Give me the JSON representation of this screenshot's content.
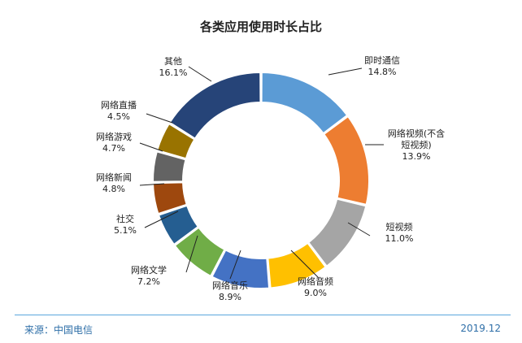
{
  "chart_data": {
    "type": "pie",
    "variant": "donut",
    "title": "各类应用使用时长占比",
    "unit": "%",
    "slices": [
      {
        "name": "即时通信",
        "value": 14.8,
        "label_lines": [
          "即时通信"
        ],
        "value_label": "14.8%",
        "color": "#5b9bd5"
      },
      {
        "name": "网络视频(不含短视频)",
        "value": 13.9,
        "label_lines": [
          "网络视频(不含",
          "短视频)"
        ],
        "value_label": "13.9%",
        "color": "#ed7d31"
      },
      {
        "name": "短视频",
        "value": 11.0,
        "label_lines": [
          "短视频"
        ],
        "value_label": "11.0%",
        "color": "#a5a5a5"
      },
      {
        "name": "网络音频",
        "value": 9.0,
        "label_lines": [
          "网络音频"
        ],
        "value_label": "9.0%",
        "color": "#ffc000"
      },
      {
        "name": "网络音乐",
        "value": 8.9,
        "label_lines": [
          "网络音乐"
        ],
        "value_label": "8.9%",
        "color": "#4472c4"
      },
      {
        "name": "网络文学",
        "value": 7.2,
        "label_lines": [
          "网络文学"
        ],
        "value_label": "7.2%",
        "color": "#70ad47"
      },
      {
        "name": "社交",
        "value": 5.1,
        "label_lines": [
          "社交"
        ],
        "value_label": "5.1%",
        "color": "#255e91"
      },
      {
        "name": "网络新闻",
        "value": 4.8,
        "label_lines": [
          "网络新闻"
        ],
        "value_label": "4.8%",
        "color": "#9e480e"
      },
      {
        "name": "网络游戏",
        "value": 4.7,
        "label_lines": [
          "网络游戏"
        ],
        "value_label": "4.7%",
        "color": "#636363"
      },
      {
        "name": "网络直播",
        "value": 4.5,
        "label_lines": [
          "网络直播"
        ],
        "value_label": "4.5%",
        "color": "#997300"
      },
      {
        "name": "其他",
        "value": 16.1,
        "label_lines": [
          "其他"
        ],
        "value_label": "16.1%",
        "color": "#264478"
      }
    ]
  },
  "footer": {
    "source": "来源：中国电信",
    "date": "2019.12"
  }
}
